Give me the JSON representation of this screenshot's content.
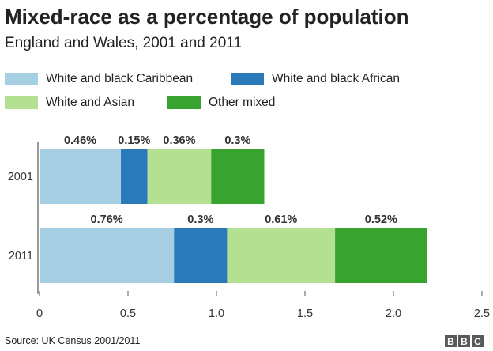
{
  "title": "Mixed-race as a percentage of population",
  "subtitle": "England and Wales, 2001 and 2011",
  "source": "Source: UK Census 2001/2011",
  "logo": [
    "B",
    "B",
    "C"
  ],
  "legend": [
    {
      "label": "White and black Caribbean",
      "color": "#a7cfe3"
    },
    {
      "label": "White and black African",
      "color": "#2a79b8"
    },
    {
      "label": "White and Asian",
      "color": "#b4e191"
    },
    {
      "label": "Other mixed",
      "color": "#38a42f"
    }
  ],
  "chart_data": {
    "type": "bar",
    "orientation": "horizontal",
    "stacked": true,
    "categories": [
      "2001",
      "2011"
    ],
    "series": [
      {
        "name": "White and black Caribbean",
        "color": "#a7cfe3",
        "values": [
          0.46,
          0.76
        ],
        "labels": [
          "0.46%",
          "0.76%"
        ]
      },
      {
        "name": "White and black African",
        "color": "#2a79b8",
        "values": [
          0.15,
          0.3
        ],
        "labels": [
          "0.15%",
          "0.3%"
        ]
      },
      {
        "name": "White and Asian",
        "color": "#b4e191",
        "values": [
          0.36,
          0.61
        ],
        "labels": [
          "0.36%",
          "0.61%"
        ]
      },
      {
        "name": "Other mixed",
        "color": "#38a42f",
        "values": [
          0.3,
          0.52
        ],
        "labels": [
          "0.3%",
          "0.52%"
        ]
      }
    ],
    "xlim": [
      0,
      2.5
    ],
    "xticks": [
      "0",
      "0.5",
      "1.0",
      "1.5",
      "2.0",
      "2.5"
    ],
    "grid": false,
    "legend_position": "top"
  }
}
